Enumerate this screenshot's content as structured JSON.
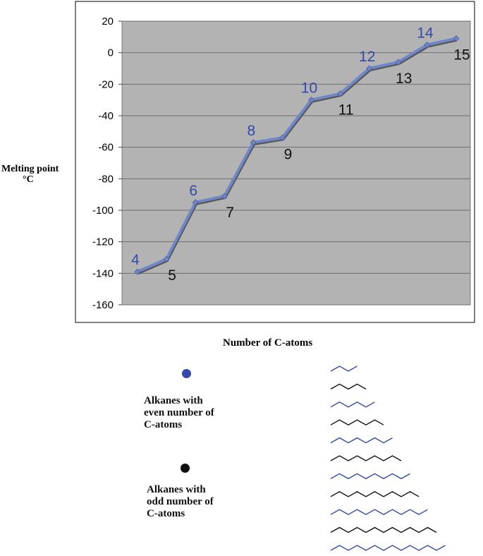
{
  "chart_data": {
    "type": "line",
    "ylabel": "Melting point",
    "yunit": "°C",
    "xlabel": "Number of C-atoms",
    "ylim": [
      -160,
      20
    ],
    "yticks": [
      20,
      0,
      -20,
      -40,
      -60,
      -80,
      -100,
      -120,
      -140,
      -160
    ],
    "grid": true,
    "x": [
      4,
      5,
      6,
      7,
      8,
      9,
      10,
      11,
      12,
      13,
      14,
      15
    ],
    "values": [
      -139,
      -131,
      -95,
      -91,
      -57,
      -54,
      -30,
      -26,
      -10,
      -6,
      5,
      9
    ],
    "point_labels": [
      "4",
      "5",
      "6",
      "7",
      "8",
      "9",
      "10",
      "11",
      "12",
      "13",
      "14",
      "15"
    ],
    "even_color": "#3548a8",
    "odd_color": "#111111",
    "line_color": "#6f87c9",
    "plot_bg": "#b3b3b3"
  },
  "legend": {
    "even_label_lines": [
      "Alkanes with",
      "even number of",
      "C-atoms"
    ],
    "odd_label_lines": [
      "Alkanes with",
      "odd number of",
      "C-atoms"
    ],
    "even_color": "#3548a8",
    "odd_color": "#111111"
  },
  "chains": [
    {
      "carbons": 4,
      "color": "#3548a8"
    },
    {
      "carbons": 5,
      "color": "#111111"
    },
    {
      "carbons": 6,
      "color": "#3548a8"
    },
    {
      "carbons": 7,
      "color": "#111111"
    },
    {
      "carbons": 8,
      "color": "#3548a8"
    },
    {
      "carbons": 9,
      "color": "#111111"
    },
    {
      "carbons": 10,
      "color": "#3548a8"
    },
    {
      "carbons": 11,
      "color": "#111111"
    },
    {
      "carbons": 12,
      "color": "#3548a8"
    },
    {
      "carbons": 13,
      "color": "#111111"
    },
    {
      "carbons": 14,
      "color": "#3548a8"
    },
    {
      "carbons": 15,
      "color": "#111111"
    }
  ]
}
